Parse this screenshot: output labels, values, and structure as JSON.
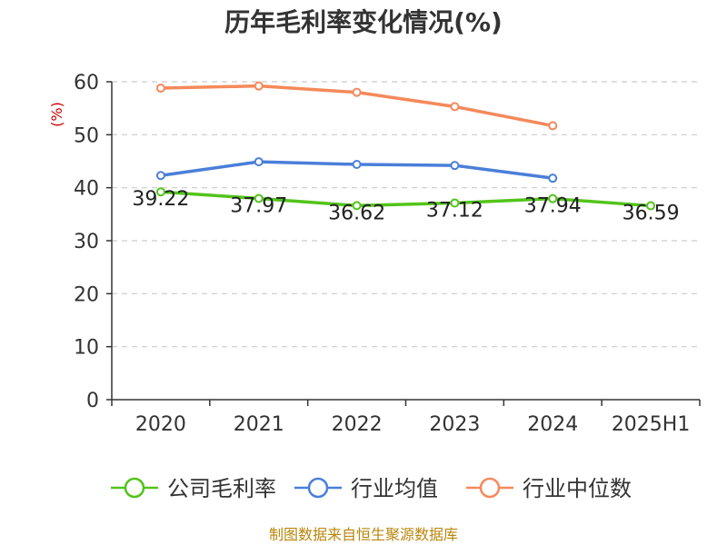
{
  "chart_data": {
    "type": "line",
    "title": "历年毛利率变化情况(%)",
    "ylabel": "(%)",
    "xlabel": "",
    "categories": [
      "2020",
      "2021",
      "2022",
      "2023",
      "2024",
      "2025H1"
    ],
    "ylim": [
      0,
      60
    ],
    "yticks": [
      0,
      10,
      20,
      30,
      40,
      50,
      60
    ],
    "grid": true,
    "legend_position": "bottom",
    "series": [
      {
        "name": "公司毛利率",
        "color": "#52c41a",
        "values": [
          39.22,
          37.97,
          36.62,
          37.12,
          37.94,
          36.59
        ],
        "labels": [
          "39.22",
          "37.97",
          "36.62",
          "37.12",
          "37.94",
          "36.59"
        ]
      },
      {
        "name": "行业均值",
        "color": "#4a7fd9",
        "values": [
          42.3,
          44.9,
          44.4,
          44.2,
          41.8,
          null
        ]
      },
      {
        "name": "行业中位数",
        "color": "#f5895a",
        "values": [
          58.8,
          59.2,
          58.0,
          55.3,
          51.7,
          null
        ]
      }
    ]
  },
  "source": "制图数据来自恒生聚源数据库"
}
